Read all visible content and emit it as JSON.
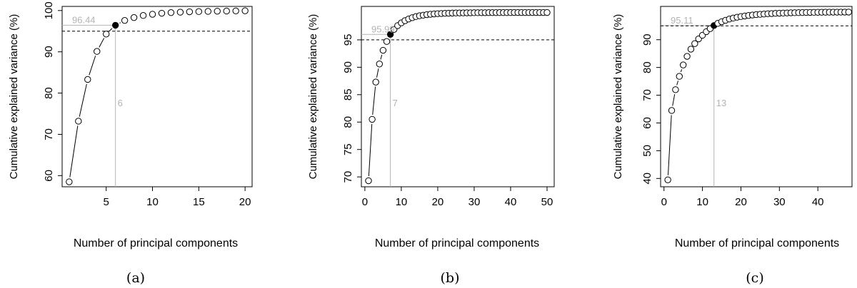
{
  "colors": {
    "axis": "#000000",
    "threshold_line": "#000000",
    "guide": "#b3b3b3",
    "guide_text": "#b3b3b3",
    "point_fill": "#ffffff",
    "point_highlight": "#000000"
  },
  "chart_data": [
    {
      "type": "scatter",
      "panel_label": "(a)",
      "xlabel": "Number of principal components",
      "ylabel": "Cumulative explained variance (%)",
      "xlim": [
        0.24,
        20.76
      ],
      "ylim": [
        57.3,
        101.0
      ],
      "xticks": [
        5,
        10,
        15,
        20
      ],
      "yticks": [
        60,
        70,
        80,
        90,
        100
      ],
      "x": [
        1,
        2,
        3,
        4,
        5,
        6,
        7,
        8,
        9,
        10,
        11,
        12,
        13,
        14,
        15,
        16,
        17,
        18,
        19,
        20
      ],
      "values": [
        58.5,
        73.2,
        83.3,
        90.1,
        94.3,
        96.44,
        97.6,
        98.3,
        98.8,
        99.1,
        99.35,
        99.5,
        99.6,
        99.7,
        99.75,
        99.8,
        99.85,
        99.88,
        99.91,
        99.94
      ],
      "threshold": 95,
      "highlight_index": 5,
      "highlight_value_label": "96.44",
      "highlight_n_label": "6"
    },
    {
      "type": "scatter",
      "panel_label": "(b)",
      "xlabel": "Number of principal components",
      "ylabel": "Cumulative explained variance (%)",
      "xlim": [
        -0.96,
        51.96
      ],
      "ylim": [
        68.2,
        101.1
      ],
      "xticks": [
        0,
        10,
        20,
        30,
        40,
        50
      ],
      "yticks": [
        70,
        75,
        80,
        85,
        90,
        95
      ],
      "x": [
        1,
        2,
        3,
        4,
        5,
        6,
        7,
        8,
        9,
        10,
        11,
        12,
        13,
        14,
        15,
        16,
        17,
        18,
        19,
        20,
        21,
        22,
        23,
        24,
        25,
        26,
        27,
        28,
        29,
        30,
        31,
        32,
        33,
        34,
        35,
        36,
        37,
        38,
        39,
        40,
        41,
        42,
        43,
        44,
        45,
        46,
        47,
        48,
        49,
        50
      ],
      "values": [
        69.3,
        80.5,
        87.3,
        90.6,
        93.1,
        94.7,
        95.99,
        96.9,
        97.6,
        98.1,
        98.5,
        98.8,
        99.05,
        99.25,
        99.4,
        99.5,
        99.6,
        99.67,
        99.73,
        99.78,
        99.81,
        99.84,
        99.86,
        99.88,
        99.9,
        99.91,
        99.92,
        99.93,
        99.94,
        99.95,
        99.95,
        99.96,
        99.96,
        99.97,
        99.97,
        99.97,
        99.98,
        99.98,
        99.98,
        99.98,
        99.99,
        99.99,
        99.99,
        99.99,
        99.99,
        99.99,
        99.99,
        99.99,
        99.99,
        99.99
      ],
      "threshold": 95,
      "highlight_index": 6,
      "highlight_value_label": "95.99",
      "highlight_n_label": "7"
    },
    {
      "type": "scatter",
      "panel_label": "(c)",
      "xlabel": "Number of principal components",
      "ylabel": "Cumulative explained variance (%)",
      "xlim": [
        -0.88,
        48.88
      ],
      "ylim": [
        37.0,
        102.0
      ],
      "xticks": [
        0,
        10,
        20,
        30,
        40
      ],
      "yticks": [
        40,
        50,
        60,
        70,
        80,
        90
      ],
      "x": [
        1,
        2,
        3,
        4,
        5,
        6,
        7,
        8,
        9,
        10,
        11,
        12,
        13,
        14,
        15,
        16,
        17,
        18,
        19,
        20,
        21,
        22,
        23,
        24,
        25,
        26,
        27,
        28,
        29,
        30,
        31,
        32,
        33,
        34,
        35,
        36,
        37,
        38,
        39,
        40,
        41,
        42,
        43,
        44,
        45,
        46,
        47,
        48
      ],
      "values": [
        39.5,
        64.5,
        72.0,
        76.8,
        80.9,
        84.0,
        86.6,
        88.6,
        90.3,
        91.6,
        92.9,
        94.0,
        95.11,
        95.9,
        96.5,
        97.0,
        97.45,
        97.8,
        98.1,
        98.35,
        98.55,
        98.75,
        98.9,
        99.05,
        99.15,
        99.25,
        99.35,
        99.42,
        99.5,
        99.55,
        99.6,
        99.65,
        99.7,
        99.73,
        99.76,
        99.79,
        99.82,
        99.84,
        99.86,
        99.88,
        99.9,
        99.91,
        99.92,
        99.93,
        99.94,
        99.95,
        99.96,
        99.97
      ],
      "threshold": 95,
      "highlight_index": 12,
      "highlight_value_label": "95.11",
      "highlight_n_label": "13"
    }
  ]
}
